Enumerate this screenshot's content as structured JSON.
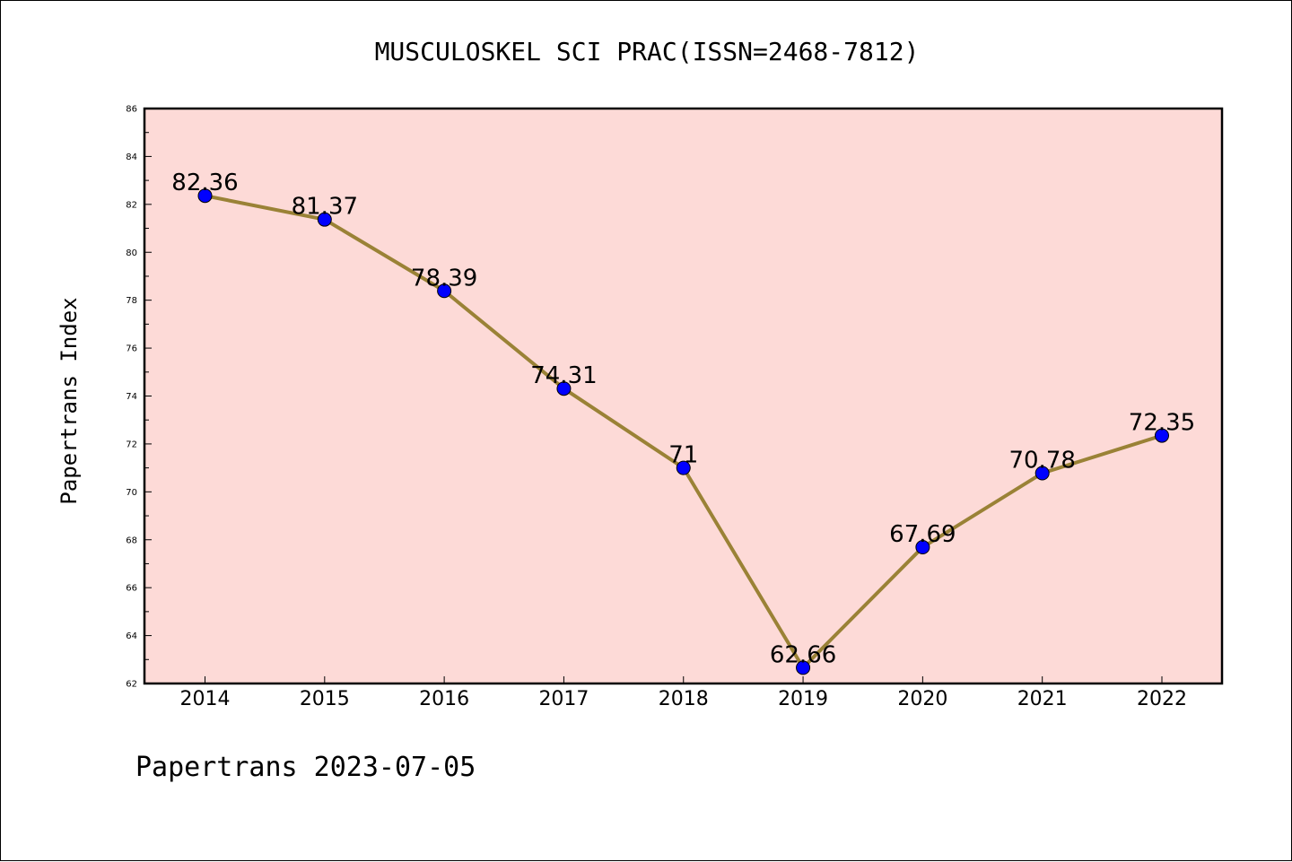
{
  "chart_data": {
    "type": "line",
    "title": "MUSCULOSKEL SCI PRAC(ISSN=2468-7812)",
    "ylabel": "Papertrans Index",
    "xlabel": "",
    "footer": "Papertrans 2023-07-05",
    "categories": [
      "2014",
      "2015",
      "2016",
      "2017",
      "2018",
      "2019",
      "2020",
      "2021",
      "2022"
    ],
    "series": [
      {
        "values": [
          82.36,
          81.37,
          78.39,
          74.31,
          71,
          62.66,
          67.69,
          70.78,
          72.35
        ],
        "labels": [
          "82.36",
          "81.37",
          "78.39",
          "74.31",
          "71",
          "62.66",
          "67.69",
          "70.78",
          "72.35"
        ],
        "line_color": "#9a8236",
        "marker_color": "#0000ff"
      }
    ],
    "ylim": [
      62,
      86
    ],
    "yticks": [
      "62",
      "64",
      "66",
      "68",
      "70",
      "72",
      "74",
      "76",
      "78",
      "80",
      "82",
      "84",
      "86"
    ],
    "plot_background": "#fddad7",
    "grid": false
  }
}
